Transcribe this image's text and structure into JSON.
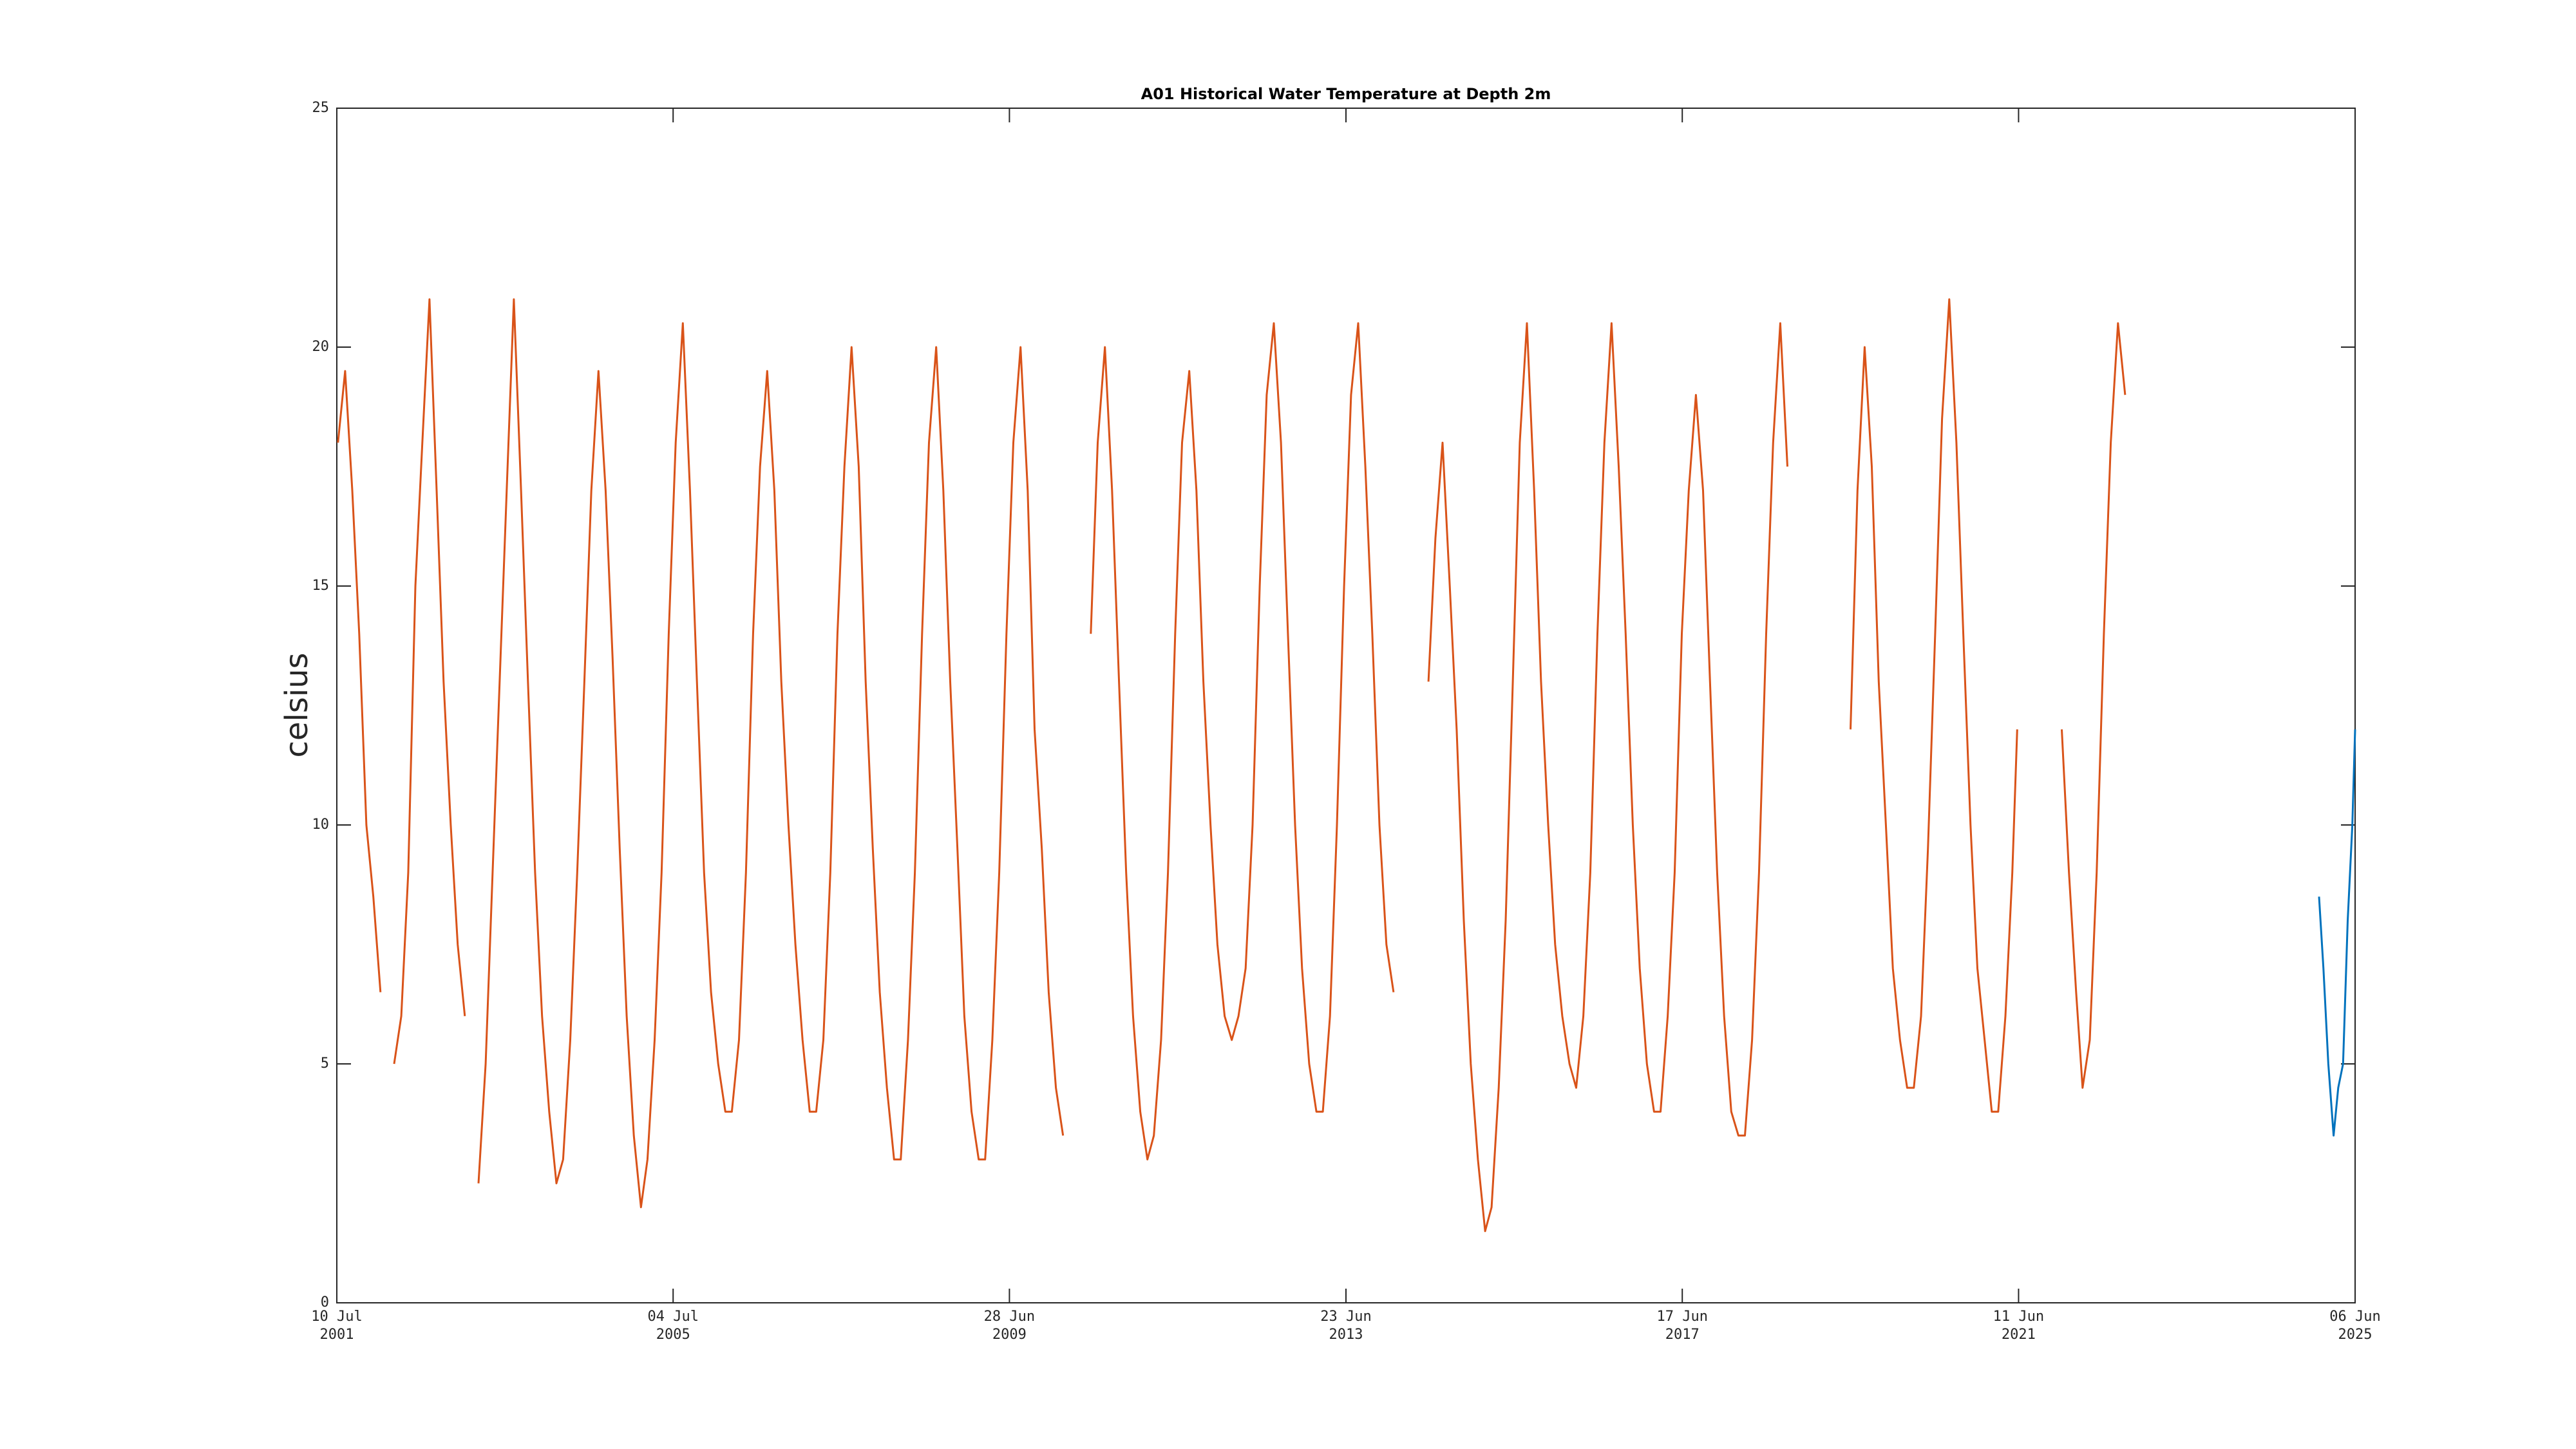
{
  "chart_data": {
    "type": "line",
    "title": "A01 Historical Water Temperature at Depth 2m",
    "y_label": "celsius",
    "xlim": [
      "2001-07-10",
      "2025-06-06"
    ],
    "xticks": [
      {
        "value": "2001-07-10",
        "label": [
          "10 Jul",
          "2001"
        ]
      },
      {
        "value": "2005-07-04",
        "label": [
          "04 Jul",
          "2005"
        ]
      },
      {
        "value": "2009-06-28",
        "label": [
          "28 Jun",
          "2009"
        ]
      },
      {
        "value": "2013-06-23",
        "label": [
          "23 Jun",
          "2013"
        ]
      },
      {
        "value": "2017-06-17",
        "label": [
          "17 Jun",
          "2017"
        ]
      },
      {
        "value": "2021-06-11",
        "label": [
          "11 Jun",
          "2021"
        ]
      },
      {
        "value": "2025-06-06",
        "label": [
          "06 Jun",
          "2025"
        ]
      }
    ],
    "ylim": [
      0,
      25
    ],
    "yticks": [
      0,
      5,
      10,
      15,
      20,
      25
    ],
    "grid": false,
    "series": [
      {
        "color": "#d95319",
        "x": [
          "2001-07-15",
          "2001-08-15",
          "2001-09-15",
          "2001-10-15",
          "2001-11-15",
          "2001-12-15",
          "2002-01-15",
          "2002-02-15",
          "2002-03-15",
          "2002-04-15",
          "2002-05-15",
          "2002-06-15",
          "2002-07-15",
          "2002-08-15",
          "2002-09-15",
          "2002-10-15",
          "2002-11-15",
          "2002-12-15",
          "2003-01-15",
          "2003-02-15",
          "2003-03-15",
          "2003-04-15",
          "2003-05-15",
          "2003-07-15",
          "2003-08-15",
          "2003-09-15",
          "2003-10-15",
          "2003-11-15",
          "2003-12-15",
          "2004-01-15",
          "2004-02-15",
          "2004-03-15",
          "2004-04-15",
          "2004-05-15",
          "2004-06-15",
          "2004-07-15",
          "2004-08-15",
          "2004-09-15",
          "2004-10-15",
          "2004-11-15",
          "2004-12-15",
          "2005-01-15",
          "2005-02-15",
          "2005-03-15",
          "2005-04-15",
          "2005-05-15",
          "2005-06-15",
          "2005-07-15",
          "2005-08-15",
          "2005-09-15",
          "2005-10-15",
          "2005-11-15",
          "2005-12-15",
          "2006-01-15",
          "2006-02-15",
          "2006-03-15",
          "2006-04-15",
          "2006-05-15",
          "2006-06-15",
          "2006-07-15",
          "2006-08-15",
          "2006-09-15",
          "2006-10-15",
          "2006-11-15",
          "2006-12-15",
          "2007-01-15",
          "2007-02-15",
          "2007-03-15",
          "2007-04-15",
          "2007-05-15",
          "2007-06-15",
          "2007-07-15",
          "2007-08-15",
          "2007-09-15",
          "2007-10-15",
          "2007-11-15",
          "2007-12-15",
          "2008-01-15",
          "2008-02-15",
          "2008-03-15",
          "2008-04-15",
          "2008-05-15",
          "2008-06-15",
          "2008-07-15",
          "2008-08-15",
          "2008-09-15",
          "2008-10-15",
          "2008-11-15",
          "2008-12-15",
          "2009-01-15",
          "2009-02-15",
          "2009-03-15",
          "2009-04-15",
          "2009-05-15",
          "2009-06-15",
          "2009-07-15",
          "2009-08-15",
          "2009-09-15",
          "2009-10-15",
          "2009-11-15",
          "2009-12-15",
          "2010-01-15",
          "2010-02-15",
          "2010-04-15",
          "2010-06-15",
          "2010-07-15",
          "2010-08-15",
          "2010-09-15",
          "2010-10-15",
          "2010-11-15",
          "2010-12-15",
          "2011-01-15",
          "2011-02-15",
          "2011-03-15",
          "2011-04-15",
          "2011-05-15",
          "2011-06-15",
          "2011-07-15",
          "2011-08-15",
          "2011-09-15",
          "2011-10-15",
          "2011-11-15",
          "2011-12-15",
          "2012-01-15",
          "2012-02-15",
          "2012-03-15",
          "2012-04-15",
          "2012-05-15",
          "2012-06-15",
          "2012-07-15",
          "2012-08-15",
          "2012-09-15",
          "2012-10-15",
          "2012-11-15",
          "2012-12-15",
          "2013-01-15",
          "2013-02-15",
          "2013-03-15",
          "2013-04-15",
          "2013-05-15",
          "2013-06-15",
          "2013-07-15",
          "2013-08-15",
          "2013-09-15",
          "2013-10-15",
          "2013-11-15",
          "2013-12-15",
          "2014-01-15",
          "2014-03-15",
          "2014-06-15",
          "2014-07-15",
          "2014-08-15",
          "2014-09-15",
          "2014-10-15",
          "2014-11-15",
          "2014-12-15",
          "2015-01-15",
          "2015-02-15",
          "2015-03-15",
          "2015-04-15",
          "2015-05-15",
          "2015-06-15",
          "2015-07-15",
          "2015-08-15",
          "2015-09-15",
          "2015-10-15",
          "2015-11-15",
          "2015-12-15",
          "2016-01-15",
          "2016-02-15",
          "2016-03-15",
          "2016-04-15",
          "2016-05-15",
          "2016-06-15",
          "2016-07-15",
          "2016-08-15",
          "2016-09-15",
          "2016-10-15",
          "2016-11-15",
          "2016-12-15",
          "2017-01-15",
          "2017-02-15",
          "2017-03-15",
          "2017-04-15",
          "2017-05-15",
          "2017-06-15",
          "2017-07-15",
          "2017-08-15",
          "2017-09-15",
          "2017-10-15",
          "2017-11-15",
          "2017-12-15",
          "2018-01-15",
          "2018-02-15",
          "2018-03-15",
          "2018-04-15",
          "2018-05-15",
          "2018-06-15",
          "2018-07-15",
          "2018-08-15",
          "2018-09-15",
          "2019-01-15",
          "2019-06-15",
          "2019-07-15",
          "2019-08-15",
          "2019-09-15",
          "2019-10-15",
          "2019-11-15",
          "2019-12-15",
          "2020-01-15",
          "2020-02-15",
          "2020-03-15",
          "2020-04-15",
          "2020-05-15",
          "2020-06-15",
          "2020-07-15",
          "2020-08-15",
          "2020-09-15",
          "2020-10-15",
          "2020-11-15",
          "2020-12-15",
          "2021-01-15",
          "2021-02-15",
          "2021-03-15",
          "2021-04-15",
          "2021-05-15",
          "2021-06-05",
          "2021-09-15",
          "2021-12-15",
          "2022-01-15",
          "2022-02-15",
          "2022-03-15",
          "2022-04-15",
          "2022-05-15",
          "2022-06-15",
          "2022-07-15",
          "2022-08-15",
          "2022-09-15"
        ],
        "values": [
          18,
          19.5,
          17,
          14,
          10,
          8.5,
          6.5,
          null,
          5,
          6,
          9,
          15,
          18,
          21,
          17,
          13,
          10,
          7.5,
          6,
          null,
          2.5,
          5,
          9,
          17,
          21,
          17,
          13,
          9,
          6,
          4,
          2.5,
          3,
          5.5,
          9,
          13,
          17,
          19.5,
          17,
          13.5,
          9.5,
          6,
          3.5,
          2,
          3,
          5.5,
          9,
          14,
          18,
          20.5,
          17,
          13,
          9,
          6.5,
          5,
          4,
          4,
          5.5,
          9,
          14,
          17.5,
          19.5,
          17,
          13,
          10,
          7.5,
          5.5,
          4,
          4,
          5.5,
          9,
          14,
          17.5,
          20,
          17.5,
          13,
          9.5,
          6.5,
          4.5,
          3,
          3,
          5.5,
          9,
          14,
          18,
          20,
          17,
          13,
          9.5,
          6,
          4,
          3,
          3,
          5.5,
          9,
          14,
          18,
          20,
          17,
          12,
          9.5,
          6.5,
          4.5,
          3.5,
          null,
          14,
          18,
          20,
          17,
          13,
          9,
          6,
          4,
          3,
          3.5,
          5.5,
          9,
          14,
          18,
          19.5,
          17,
          13,
          10,
          7.5,
          6,
          5.5,
          6,
          7,
          10,
          15,
          19,
          20.5,
          18,
          14,
          10,
          7,
          5,
          4,
          4,
          6,
          10,
          15,
          19,
          20.5,
          17.5,
          14,
          10,
          7.5,
          6.5,
          null,
          13,
          16,
          18,
          15,
          12,
          8,
          5,
          3,
          1.5,
          2,
          4.5,
          8,
          13,
          18,
          20.5,
          17,
          13,
          10,
          7.5,
          6,
          5,
          4.5,
          6,
          9,
          14,
          18,
          20.5,
          17.5,
          14,
          10,
          7,
          5,
          4,
          4,
          6,
          9,
          14,
          17,
          19,
          17,
          13,
          9,
          6,
          4,
          3.5,
          3.5,
          5.5,
          9,
          14,
          18,
          20.5,
          17.5,
          null,
          12,
          17,
          20,
          17.5,
          13,
          10,
          7,
          5.5,
          4.5,
          4.5,
          6,
          9.5,
          14,
          18.5,
          21,
          18,
          14,
          10,
          7,
          5.5,
          4,
          4,
          6,
          9,
          12,
          null,
          12,
          9,
          6.5,
          4.5,
          5.5,
          9,
          14,
          18,
          20.5,
          19
        ]
      },
      {
        "color": "#0072bd",
        "x": [
          "2025-01-01",
          "2025-01-20",
          "2025-02-10",
          "2025-03-05",
          "2025-03-25",
          "2025-04-15",
          "2025-05-05",
          "2025-05-25",
          "2025-06-06"
        ],
        "values": [
          8.5,
          7,
          5,
          3.5,
          4.5,
          5,
          8,
          10,
          12
        ]
      }
    ]
  }
}
